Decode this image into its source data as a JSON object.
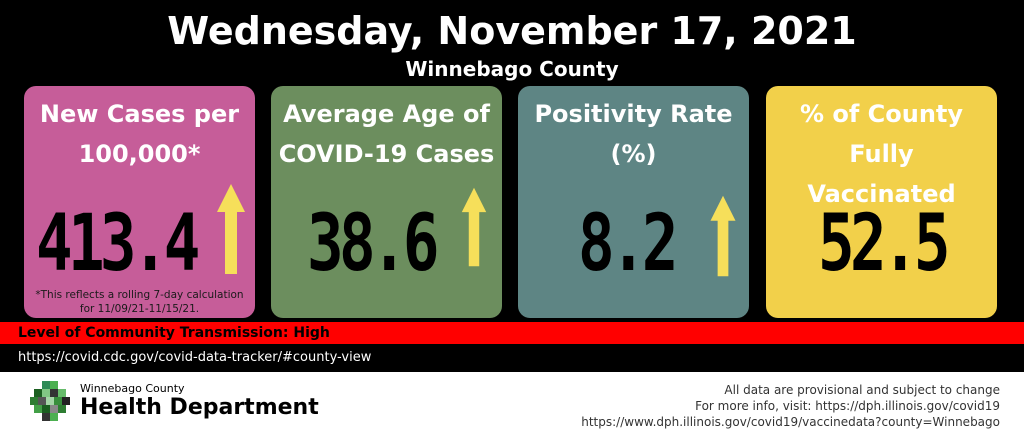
{
  "header": {
    "date": "Wednesday, November 17, 2021",
    "county": "Winnebago County"
  },
  "colors": {
    "card_cases": "#C65D99",
    "card_age": "#6C8E5E",
    "card_positivity": "#5E8584",
    "card_vaccinated": "#F2D04A",
    "arrow": "#F6DF5A",
    "transmission_band": "#FF0000"
  },
  "cards": [
    {
      "title_line1": "New Cases per",
      "title_line2": "100,000*",
      "value": "413.4",
      "trend_icon": "arrow-up-icon",
      "footnote_line1": "*This reflects a rolling 7-day calculation",
      "footnote_line2": "for 11/09/21-11/15/21."
    },
    {
      "title_line1": "Average Age of",
      "title_line2": "COVID-19 Cases",
      "value": "38.6",
      "trend_icon": "arrow-up-icon"
    },
    {
      "title_line1": "Positivity Rate",
      "title_line2": "(%)",
      "value": "8.2",
      "trend_icon": "arrow-up-icon"
    },
    {
      "title_line1": "% of County",
      "title_line2": "Fully Vaccinated",
      "value": "52.5"
    }
  ],
  "transmission": {
    "label": "Level of Community Transmission: High"
  },
  "cdc_link": "https://covid.cdc.gov/covid-data-tracker/#county-view",
  "footer": {
    "org_small": "Winnebago County",
    "org_big": "Health Department",
    "logo_icon": "health-department-logo-icon",
    "disclaimer_line1": "All data are provisional and subject to change",
    "disclaimer_line2": "For more info, visit: https://dph.illinois.gov/covid19",
    "disclaimer_line3": "https://www.dph.illinois.gov/covid19/vaccinedata?county=Winnebago"
  }
}
